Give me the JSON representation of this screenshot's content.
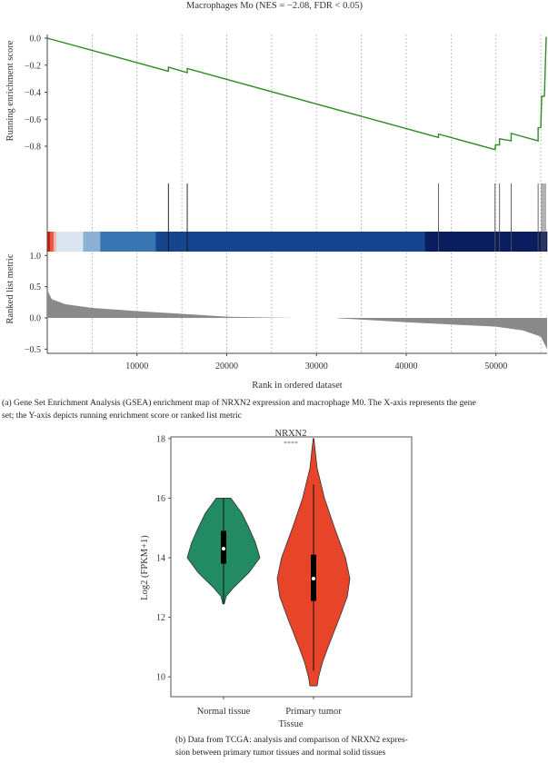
{
  "chart_data": [
    {
      "type": "line",
      "subtype": "gsea-enrichment",
      "title": "Macrophages Mo (NES = −2.08, FDR < 0.05)",
      "xlabel": "Rank in ordered dataset",
      "xlim": [
        0,
        55700
      ],
      "xticks": [
        10000,
        20000,
        30000,
        40000,
        50000
      ],
      "xtick_labels": [
        "10000",
        "20000",
        "30000",
        "40000",
        "50000"
      ],
      "vgrid": [
        5000,
        10000,
        15000,
        20000,
        25000,
        30000,
        35000,
        40000,
        45000,
        50000,
        55000
      ],
      "es_panel": {
        "ylabel": "Running enrichment score",
        "ylim": [
          -0.85,
          0.02
        ],
        "yticks": [
          0.0,
          -0.2,
          -0.4,
          -0.6,
          -0.8
        ],
        "ytick_labels": [
          "0.0",
          "−0.2",
          "−0.4",
          "−0.6",
          "−0.8"
        ],
        "color": "#2e8b25",
        "points": [
          [
            0,
            0
          ],
          [
            13500,
            -0.245
          ],
          [
            13500,
            -0.215
          ],
          [
            15600,
            -0.255
          ],
          [
            15600,
            -0.225
          ],
          [
            43600,
            -0.735
          ],
          [
            43600,
            -0.71
          ],
          [
            49900,
            -0.825
          ],
          [
            49950,
            -0.79
          ],
          [
            50400,
            -0.79
          ],
          [
            50400,
            -0.745
          ],
          [
            51700,
            -0.76
          ],
          [
            51700,
            -0.705
          ],
          [
            54700,
            -0.76
          ],
          [
            54700,
            -0.665
          ],
          [
            55000,
            -0.66
          ],
          [
            55100,
            -0.43
          ],
          [
            55400,
            -0.43
          ],
          [
            55600,
            0.01
          ]
        ]
      },
      "hits": [
        13500,
        15600,
        43600,
        49900,
        50400,
        51700,
        54700,
        55100,
        55300,
        55500
      ],
      "color_bar": [
        {
          "from": 0,
          "to": 300,
          "color": "#b8221a"
        },
        {
          "from": 300,
          "to": 700,
          "color": "#e45a44"
        },
        {
          "from": 700,
          "to": 1000,
          "color": "#f6b6a4"
        },
        {
          "from": 1000,
          "to": 4000,
          "color": "#dce6f2"
        },
        {
          "from": 4000,
          "to": 5900,
          "color": "#8cb1d4"
        },
        {
          "from": 5900,
          "to": 12100,
          "color": "#3776b3"
        },
        {
          "from": 12100,
          "to": 42100,
          "color": "#15458f"
        },
        {
          "from": 42100,
          "to": 55700,
          "color": "#0a1d5e"
        }
      ],
      "ranked_panel": {
        "ylabel": "Ranked list metric",
        "ylim": [
          -0.5,
          1.0
        ],
        "yticks": [
          1.0,
          0.5,
          0.0,
          -0.5
        ],
        "ytick_labels": [
          "1.0",
          "0.5",
          "0.0",
          "−0.5"
        ],
        "color": "#8a8a8a",
        "positive": [
          [
            0,
            0.45
          ],
          [
            500,
            0.3
          ],
          [
            2000,
            0.22
          ],
          [
            5000,
            0.16
          ],
          [
            10000,
            0.11
          ],
          [
            15000,
            0.065
          ],
          [
            20000,
            0.02
          ],
          [
            27500,
            0.0
          ]
        ],
        "negative": [
          [
            32300,
            -0.005
          ],
          [
            40000,
            -0.07
          ],
          [
            50000,
            -0.14
          ],
          [
            53000,
            -0.2
          ],
          [
            55000,
            -0.3
          ],
          [
            55700,
            -0.5
          ]
        ]
      }
    },
    {
      "type": "violin",
      "title": "NRXN2",
      "significance": "****",
      "xlabel": "Tissue",
      "ylabel": "Log2 (FPKM+1)",
      "ylim": [
        9.4,
        18.0
      ],
      "yticks": [
        10,
        12,
        14,
        16,
        18
      ],
      "ytick_labels": [
        "10",
        "12",
        "14",
        "16",
        "18"
      ],
      "categories": [
        "Normal tissue",
        "Primary tumor"
      ],
      "groups": [
        {
          "name": "Normal tissue",
          "color": "#228b63",
          "median": 14.3,
          "q1": 13.8,
          "q3": 14.9,
          "whisker": [
            12.45,
            16.0
          ],
          "density": [
            [
              12.45,
              0.02
            ],
            [
              12.7,
              0.07
            ],
            [
              13.0,
              0.28
            ],
            [
              13.5,
              0.7
            ],
            [
              14.0,
              1.0
            ],
            [
              14.5,
              0.88
            ],
            [
              15.0,
              0.7
            ],
            [
              15.5,
              0.5
            ],
            [
              16.0,
              0.2
            ]
          ]
        },
        {
          "name": "Primary tumor",
          "color": "#e8442a",
          "median": 13.3,
          "q1": 12.55,
          "q3": 14.1,
          "whisker": [
            10.2,
            16.45
          ],
          "density": [
            [
              9.7,
              0.1
            ],
            [
              10.0,
              0.14
            ],
            [
              10.5,
              0.25
            ],
            [
              11.0,
              0.4
            ],
            [
              12.0,
              0.72
            ],
            [
              12.7,
              0.93
            ],
            [
              13.3,
              1.0
            ],
            [
              14.0,
              0.88
            ],
            [
              15.0,
              0.58
            ],
            [
              16.0,
              0.3
            ],
            [
              17.0,
              0.1
            ],
            [
              18.0,
              0.01
            ]
          ]
        }
      ]
    }
  ],
  "captions": {
    "a_line1": "(a)  Gene Set Enrichment Analysis (GSEA) enrichment map of NRXN2 expression and macrophage M0. The X-axis represents the gene",
    "a_line2": "set; the Y-axis depicts running enrichment score or ranked list metric",
    "b_line1": "(b)  Data from TCGA: analysis and comparison of NRXN2 expres-",
    "b_line2": "sion between primary tumor tissues and normal solid tissues"
  }
}
